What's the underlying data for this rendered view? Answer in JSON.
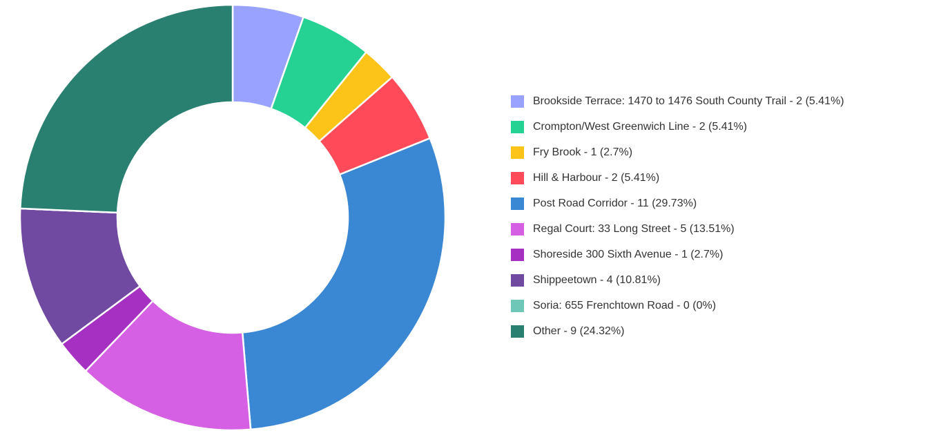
{
  "chart_data": {
    "type": "donut",
    "categories": [
      "Brookside Terrace: 1470 to 1476 South County Trail - 2 (5.41%)",
      "Crompton/West Greenwich Line - 2 (5.41%)",
      "Fry Brook - 1 (2.7%)",
      "Hill & Harbour - 2 (5.41%)",
      "Post Road Corridor - 11 (29.73%)",
      "Regal Court: 33 Long Street - 5 (13.51%)",
      "Shoreside 300 Sixth Avenue - 1 (2.7%)",
      "Shippeetown - 4 (10.81%)",
      "Soria: 655 Frenchtown Road - 0 (0%)",
      "Other - 9 (24.32%)"
    ],
    "values": [
      2,
      2,
      1,
      2,
      11,
      5,
      1,
      4,
      0,
      9
    ],
    "colors": [
      "#99a3ff",
      "#26d293",
      "#fcc419",
      "#ff4a5a",
      "#3a87d4",
      "#d560e3",
      "#a530c2",
      "#7049a0",
      "#6fc7b8",
      "#2a8070"
    ],
    "legend": "right"
  }
}
